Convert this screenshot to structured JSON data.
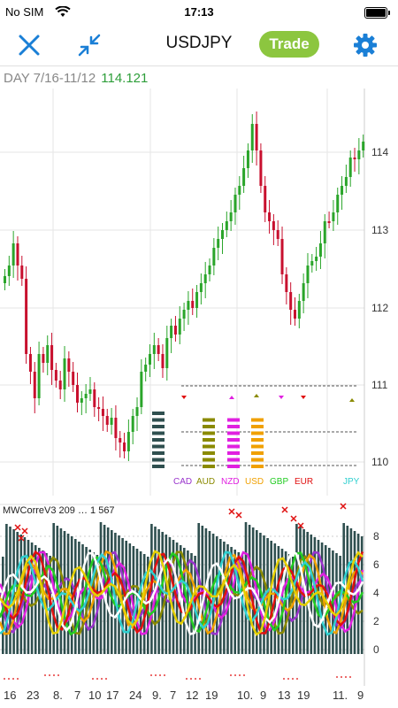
{
  "status": {
    "carrier": "No SIM",
    "time": "17:13"
  },
  "nav": {
    "close_icon": "close-icon",
    "collapse_icon": "collapse-arrows-icon",
    "title": "USDJPY",
    "trade_label": "Trade",
    "settings_icon": "gear-icon"
  },
  "subheader": {
    "range": "DAY 7/16-11/12",
    "last_price": "114.121"
  },
  "price_axis": {
    "ticks": [
      "114",
      "113",
      "112",
      "111",
      "110"
    ]
  },
  "indicator": {
    "label": "MWCorreV3 209 … 1 567",
    "ticks": [
      "8",
      "6",
      "4",
      "2",
      "0"
    ]
  },
  "currency_legend": [
    {
      "code": "CAD",
      "color": "#9933cc"
    },
    {
      "code": "AUD",
      "color": "#8a8a00"
    },
    {
      "code": "NZD",
      "color": "#e020e0"
    },
    {
      "code": "USD",
      "color": "#f0a000"
    },
    {
      "code": "GBP",
      "color": "#22cc22"
    },
    {
      "code": "EUR",
      "color": "#e01010"
    },
    {
      "code": "JPY",
      "color": "#30d0d0"
    }
  ],
  "x_labels": [
    "16",
    "23",
    "8.",
    "7",
    "10",
    "17",
    "24",
    "9.",
    "7",
    "12",
    "19",
    "10.",
    "9",
    "13",
    "19",
    "11.",
    "9"
  ],
  "colors": {
    "bull": "#2aa52a",
    "bear": "#c8102e",
    "accent": "#1a7fd6",
    "trade": "#8cc63f"
  }
}
